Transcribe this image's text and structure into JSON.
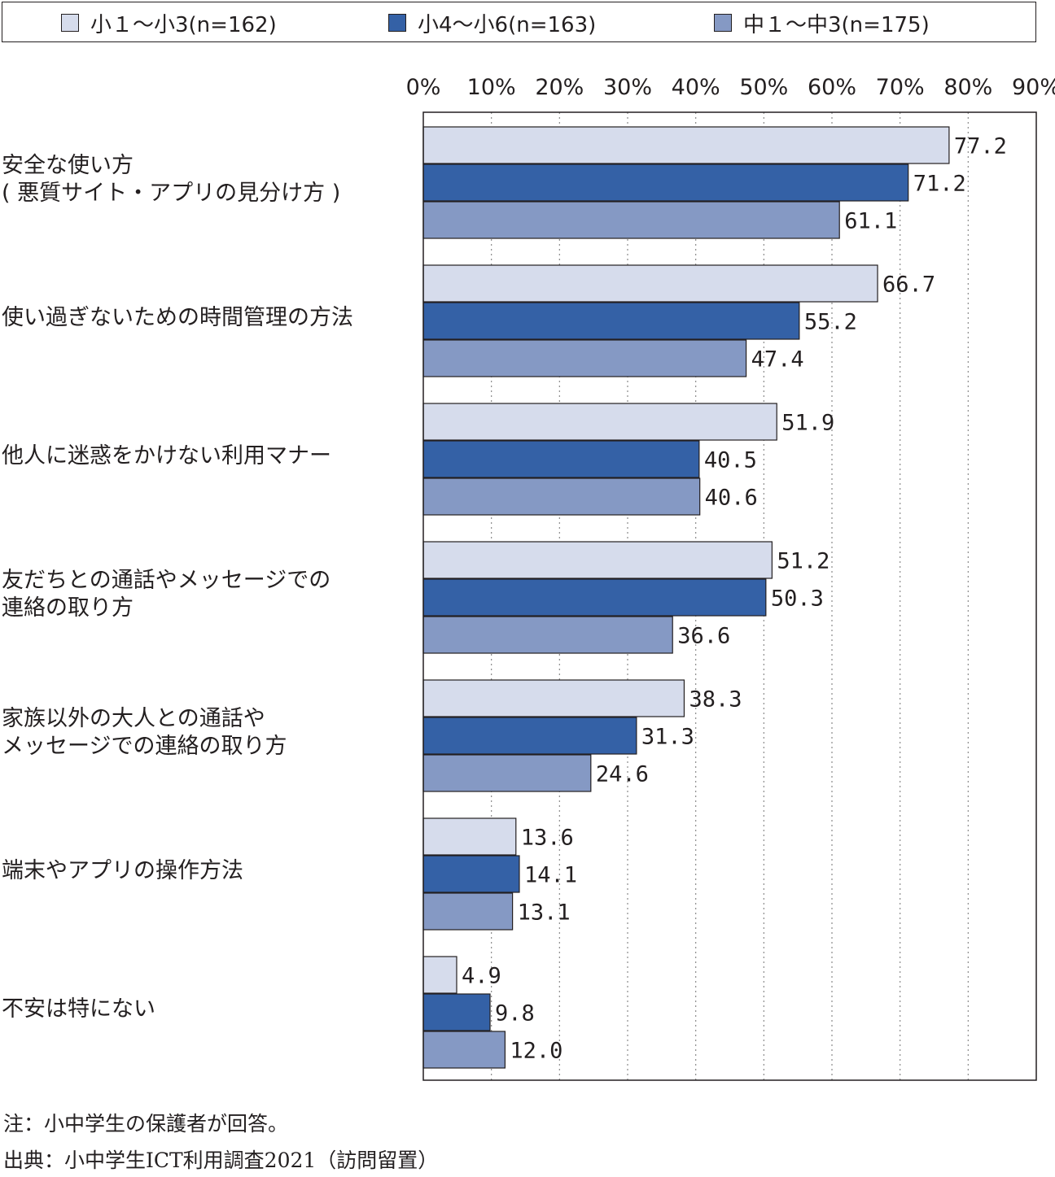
{
  "chart_data": {
    "type": "bar",
    "orientation": "horizontal",
    "categories": [
      [
        "安全な使い方",
        "( 悪質サイト・アプリの見分け方 )"
      ],
      [
        "使い過ぎないための時間管理の方法"
      ],
      [
        "他人に迷惑をかけない利用マナー"
      ],
      [
        "友だちとの通話やメッセージでの",
        "連絡の取り方"
      ],
      [
        "家族以外の大人との通話や",
        "メッセージでの連絡の取り方"
      ],
      [
        "端末やアプリの操作方法"
      ],
      [
        "不安は特にない"
      ]
    ],
    "series": [
      {
        "name": "小１～小3(n=162)",
        "color": "#d6dcec",
        "values": [
          77.2,
          66.7,
          51.9,
          51.2,
          38.3,
          13.6,
          4.9
        ]
      },
      {
        "name": "小4～小6(n=163)",
        "color": "#3461a6",
        "values": [
          71.2,
          55.2,
          40.5,
          50.3,
          31.3,
          14.1,
          9.8
        ]
      },
      {
        "name": "中１～中3(n=175)",
        "color": "#8599c4",
        "values": [
          61.1,
          47.4,
          40.6,
          36.6,
          24.6,
          13.1,
          12.0
        ]
      }
    ],
    "value_labels": [
      [
        "77.2",
        "66.7",
        "51.9",
        "51.2",
        "38.3",
        "13.6",
        "4.9"
      ],
      [
        "71.2",
        "55.2",
        "40.5",
        "50.3",
        "31.3",
        "14.1",
        "9.8"
      ],
      [
        "61.1",
        "47.4",
        "40.6",
        "36.6",
        "24.6",
        "13.1",
        "12.0"
      ]
    ],
    "xlim": [
      0,
      90
    ],
    "xticks": [
      0,
      10,
      20,
      30,
      40,
      50,
      60,
      70,
      80,
      90
    ],
    "xtick_labels": [
      "0%",
      "10%",
      "20%",
      "30%",
      "40%",
      "50%",
      "60%",
      "70%",
      "80%",
      "90%"
    ],
    "grid": true,
    "legend_position": "top",
    "title": "",
    "xlabel": "",
    "ylabel": ""
  },
  "notes": {
    "note": "注：小中学生の保護者が回答。",
    "source": "出典：小中学生ICT利用調査2021（訪問留置）"
  }
}
